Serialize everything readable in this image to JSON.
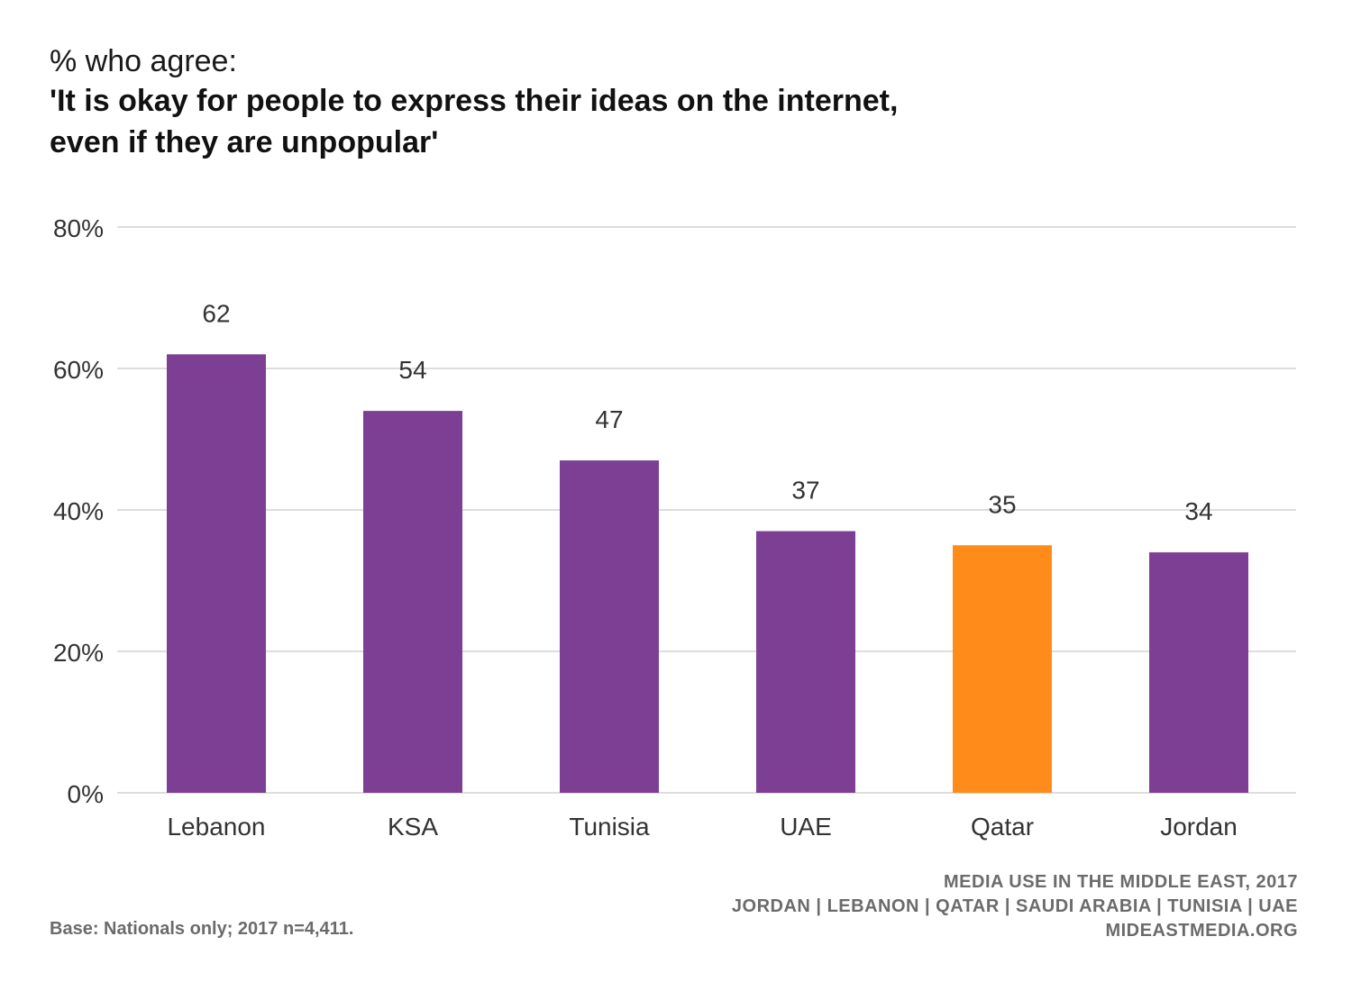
{
  "header": {
    "subtitle": "% who agree:",
    "title_line1": "'It is okay for people to express their ideas on the internet,",
    "title_line2": "even if they are unpopular'"
  },
  "chart_data": {
    "type": "bar",
    "categories": [
      "Lebanon",
      "KSA",
      "Tunisia",
      "UAE",
      "Qatar",
      "Jordan"
    ],
    "values": [
      62,
      54,
      47,
      37,
      35,
      34
    ],
    "data_labels": [
      "62",
      "54",
      "47",
      "37",
      "35",
      "34"
    ],
    "bar_colors": [
      "#7d3f94",
      "#7d3f94",
      "#7d3f94",
      "#7d3f94",
      "#ff8c1a",
      "#7d3f94"
    ],
    "yticks": [
      0,
      20,
      40,
      60,
      80
    ],
    "ytick_labels": [
      "0%",
      "20%",
      "40%",
      "60%",
      "80%"
    ],
    "ylim": [
      0,
      80
    ],
    "grid": true,
    "xlabel": "",
    "ylabel": ""
  },
  "footer": {
    "base_note": "Base: Nationals only; 2017 n=4,411.",
    "source_line1": "MEDIA USE IN THE MIDDLE EAST, 2017",
    "source_line2": "JORDAN | LEBANON | QATAR | SAUDI ARABIA | TUNISIA | UAE",
    "source_line3": "MIDEASTMEDIA.ORG"
  },
  "colors": {
    "primary_bar": "#7d3f94",
    "highlight_bar": "#ff8c1a",
    "gridline": "#dddddd",
    "footer_text": "#6b6b6b"
  }
}
